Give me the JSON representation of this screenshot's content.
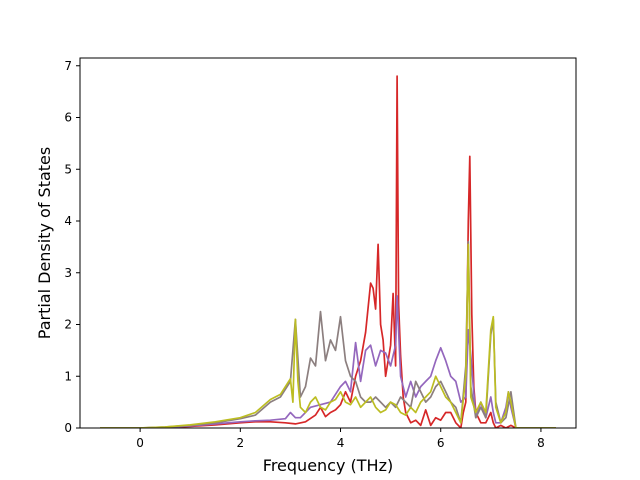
{
  "chart_data": {
    "type": "line",
    "xlabel": "Frequency (THz)",
    "ylabel": "Partial Density of States",
    "xlim": [
      -1.2,
      8.7
    ],
    "ylim": [
      0,
      7.15
    ],
    "xticks": [
      0,
      2,
      4,
      6,
      8
    ],
    "yticks": [
      0,
      1,
      2,
      3,
      4,
      5,
      6,
      7
    ],
    "grid": false,
    "legend": "none",
    "series": [
      {
        "color": "#d62728",
        "x": [
          -0.8,
          0.0,
          0.5,
          1.0,
          1.5,
          2.0,
          2.3,
          2.6,
          2.9,
          3.1,
          3.3,
          3.5,
          3.6,
          3.7,
          3.8,
          3.9,
          4.0,
          4.1,
          4.2,
          4.3,
          4.4,
          4.5,
          4.6,
          4.65,
          4.7,
          4.75,
          4.8,
          4.85,
          4.9,
          5.0,
          5.05,
          5.1,
          5.13,
          5.16,
          5.2,
          5.25,
          5.3,
          5.4,
          5.5,
          5.6,
          5.7,
          5.8,
          5.9,
          6.0,
          6.1,
          6.2,
          6.3,
          6.4,
          6.45,
          6.5,
          6.55,
          6.58,
          6.62,
          6.66,
          6.7,
          6.8,
          6.9,
          7.0,
          7.05,
          7.1,
          7.2,
          7.3,
          7.4,
          7.5,
          8.3
        ],
        "y": [
          0,
          0,
          0.01,
          0.03,
          0.06,
          0.1,
          0.12,
          0.12,
          0.1,
          0.08,
          0.12,
          0.25,
          0.4,
          0.22,
          0.3,
          0.35,
          0.45,
          0.7,
          0.5,
          1.0,
          1.3,
          1.85,
          2.8,
          2.7,
          2.3,
          3.55,
          2.0,
          1.7,
          1.0,
          1.6,
          2.6,
          1.2,
          6.8,
          2.4,
          1.4,
          0.6,
          0.3,
          0.1,
          0.15,
          0.05,
          0.35,
          0.05,
          0.2,
          0.15,
          0.3,
          0.3,
          0.1,
          0.0,
          0.3,
          0.5,
          4.0,
          5.25,
          2.2,
          0.8,
          0.3,
          0.1,
          0.1,
          0.3,
          0.1,
          0.0,
          0.05,
          0.0,
          0.05,
          0.0,
          0.0
        ]
      },
      {
        "color": "#9467bd",
        "x": [
          -0.8,
          0.0,
          0.5,
          1.0,
          1.5,
          2.0,
          2.3,
          2.6,
          2.9,
          3.0,
          3.1,
          3.2,
          3.4,
          3.6,
          3.8,
          4.0,
          4.1,
          4.2,
          4.3,
          4.4,
          4.5,
          4.6,
          4.7,
          4.8,
          4.9,
          5.0,
          5.1,
          5.13,
          5.2,
          5.3,
          5.4,
          5.5,
          5.6,
          5.7,
          5.8,
          5.9,
          6.0,
          6.1,
          6.2,
          6.3,
          6.4,
          6.5,
          6.55,
          6.6,
          6.7,
          6.8,
          6.9,
          7.0,
          7.05,
          7.1,
          7.2,
          7.3,
          7.35,
          7.4,
          7.5,
          8.3
        ],
        "y": [
          0,
          0,
          0.01,
          0.04,
          0.08,
          0.12,
          0.14,
          0.15,
          0.18,
          0.3,
          0.2,
          0.2,
          0.4,
          0.45,
          0.5,
          0.8,
          0.9,
          0.7,
          1.65,
          0.9,
          1.5,
          1.6,
          1.2,
          1.5,
          1.45,
          1.2,
          1.6,
          2.55,
          1.0,
          0.6,
          0.9,
          0.6,
          0.8,
          0.9,
          1.0,
          1.3,
          1.55,
          1.3,
          1.0,
          0.9,
          0.5,
          0.6,
          1.9,
          1.4,
          0.2,
          0.5,
          0.2,
          0.6,
          0.3,
          0.1,
          0.1,
          0.4,
          0.7,
          0.4,
          0.0,
          0.0
        ]
      },
      {
        "color": "#8c7f7f",
        "x": [
          -0.8,
          0.0,
          0.5,
          1.0,
          1.5,
          2.0,
          2.3,
          2.6,
          2.8,
          3.0,
          3.1,
          3.2,
          3.3,
          3.4,
          3.5,
          3.6,
          3.7,
          3.8,
          3.9,
          4.0,
          4.1,
          4.2,
          4.3,
          4.4,
          4.5,
          4.6,
          4.7,
          4.8,
          4.9,
          5.0,
          5.1,
          5.2,
          5.3,
          5.4,
          5.5,
          5.6,
          5.7,
          5.8,
          5.9,
          6.0,
          6.1,
          6.2,
          6.3,
          6.4,
          6.5,
          6.55,
          6.6,
          6.7,
          6.8,
          6.9,
          7.0,
          7.05,
          7.1,
          7.2,
          7.3,
          7.4,
          7.5,
          8.3
        ],
        "y": [
          0,
          0,
          0.02,
          0.05,
          0.1,
          0.18,
          0.25,
          0.5,
          0.6,
          0.9,
          2.1,
          0.6,
          0.8,
          1.35,
          1.2,
          2.25,
          1.3,
          1.7,
          1.5,
          2.15,
          1.3,
          1.0,
          0.9,
          0.6,
          0.5,
          0.5,
          0.6,
          0.5,
          0.4,
          0.5,
          0.4,
          0.6,
          0.5,
          0.4,
          0.9,
          0.7,
          0.5,
          0.6,
          0.8,
          0.9,
          0.7,
          0.5,
          0.4,
          0.1,
          1.2,
          3.6,
          0.8,
          0.2,
          0.4,
          0.2,
          1.8,
          2.1,
          0.5,
          0.1,
          0.2,
          0.7,
          0.0,
          0.0
        ]
      },
      {
        "color": "#bcbd22",
        "x": [
          -0.8,
          0.0,
          0.5,
          1.0,
          1.5,
          2.0,
          2.3,
          2.6,
          2.8,
          3.0,
          3.05,
          3.1,
          3.15,
          3.2,
          3.3,
          3.4,
          3.5,
          3.6,
          3.7,
          3.8,
          3.9,
          4.0,
          4.1,
          4.2,
          4.3,
          4.4,
          4.5,
          4.6,
          4.7,
          4.8,
          4.9,
          5.0,
          5.1,
          5.2,
          5.3,
          5.4,
          5.5,
          5.6,
          5.7,
          5.8,
          5.9,
          6.0,
          6.1,
          6.2,
          6.3,
          6.4,
          6.5,
          6.55,
          6.6,
          6.7,
          6.8,
          6.9,
          7.0,
          7.05,
          7.1,
          7.2,
          7.3,
          7.35,
          7.4,
          7.5,
          8.3
        ],
        "y": [
          0,
          0,
          0.02,
          0.06,
          0.12,
          0.2,
          0.3,
          0.55,
          0.65,
          0.95,
          0.5,
          2.1,
          0.9,
          0.4,
          0.3,
          0.5,
          0.6,
          0.4,
          0.35,
          0.5,
          0.55,
          0.7,
          0.5,
          0.45,
          0.6,
          0.4,
          0.5,
          0.6,
          0.4,
          0.3,
          0.35,
          0.5,
          0.45,
          0.3,
          0.25,
          0.4,
          0.3,
          0.5,
          0.6,
          0.7,
          1.0,
          0.8,
          0.6,
          0.5,
          0.3,
          0.1,
          1.0,
          3.55,
          0.6,
          0.3,
          0.5,
          0.3,
          1.9,
          2.15,
          0.4,
          0.1,
          0.3,
          0.7,
          0.5,
          0.0,
          0.0
        ]
      }
    ]
  }
}
